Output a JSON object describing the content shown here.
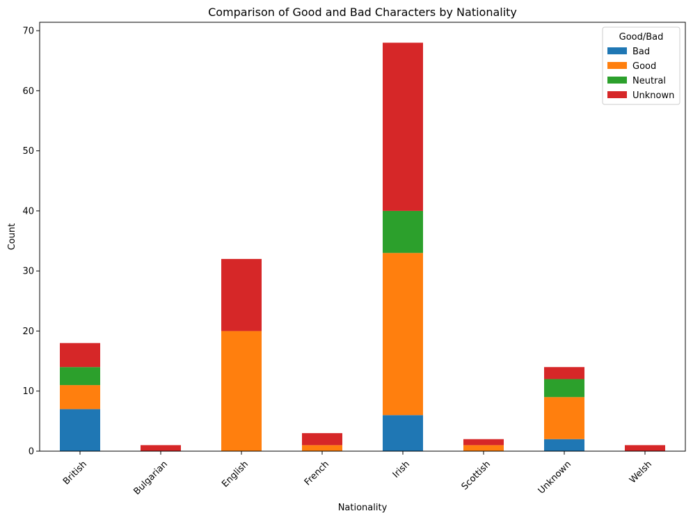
{
  "chart_data": {
    "type": "bar",
    "stacked": true,
    "title": "Comparison of Good and Bad Characters by Nationality",
    "xlabel": "Nationality",
    "ylabel": "Count",
    "ylim": [
      0,
      71.4
    ],
    "yticks": [
      0,
      10,
      20,
      30,
      40,
      50,
      60,
      70
    ],
    "categories": [
      "British",
      "Bulgarian",
      "English",
      "French",
      "Irish",
      "Scottish",
      "Unknown",
      "Welsh"
    ],
    "series": [
      {
        "name": "Bad",
        "color": "#1f77b4",
        "values": [
          7,
          0,
          0,
          0,
          6,
          0,
          2,
          0
        ]
      },
      {
        "name": "Good",
        "color": "#ff7f0e",
        "values": [
          4,
          0,
          20,
          1,
          27,
          1,
          7,
          0
        ]
      },
      {
        "name": "Neutral",
        "color": "#2ca02c",
        "values": [
          3,
          0,
          0,
          0,
          7,
          0,
          3,
          0
        ]
      },
      {
        "name": "Unknown",
        "color": "#d62728",
        "values": [
          4,
          1,
          12,
          2,
          28,
          1,
          2,
          1
        ]
      }
    ],
    "legend": {
      "title": "Good/Bad",
      "position": "top-right"
    },
    "grid": false
  }
}
